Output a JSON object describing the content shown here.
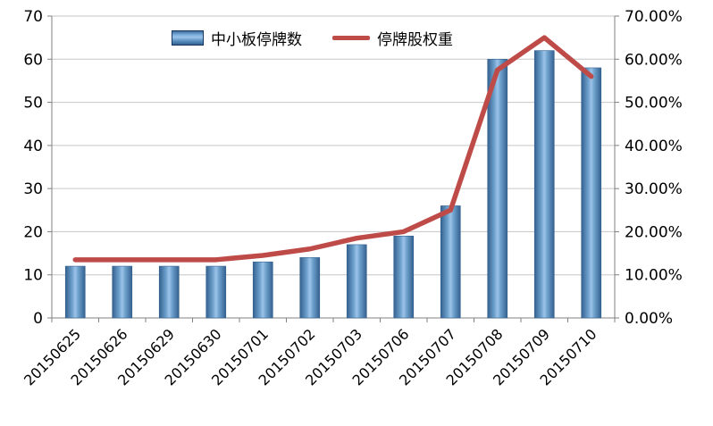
{
  "chart_data": {
    "type": "bar+line",
    "title": "",
    "categories": [
      "20150625",
      "20150626",
      "20150629",
      "20150630",
      "20150701",
      "20150702",
      "20150703",
      "20150706",
      "20150707",
      "20150708",
      "20150709",
      "20150710"
    ],
    "series": [
      {
        "name": "中小板停牌数",
        "type": "bar",
        "axis": "left",
        "color": "#4F81BD",
        "values": [
          12,
          12,
          12,
          12,
          13,
          14,
          17,
          19,
          26,
          60,
          62,
          58
        ]
      },
      {
        "name": "停牌股权重",
        "type": "line",
        "axis": "right",
        "color": "#BE4B48",
        "values": [
          13.5,
          13.5,
          13.5,
          13.5,
          14.5,
          16,
          18.5,
          20,
          25,
          57.5,
          65,
          56
        ]
      }
    ],
    "left_axis": {
      "min": 0,
      "max": 70,
      "step": 10,
      "tick_labels": [
        "0",
        "10",
        "20",
        "30",
        "40",
        "50",
        "60",
        "70"
      ]
    },
    "right_axis": {
      "min": 0,
      "max": 70,
      "step": 10,
      "format": "percent",
      "tick_labels": [
        "0.00%",
        "10.00%",
        "20.00%",
        "30.00%",
        "40.00%",
        "50.00%",
        "60.00%",
        "70.00%"
      ]
    },
    "grid": true,
    "legend_position": "top",
    "colors": {
      "grid": "#C6C6C6",
      "axis": "#808080",
      "text": "#000000",
      "bar_edge": "#35618F",
      "bar_mid": "#9CC3E8",
      "line": "#BE4B48"
    }
  }
}
